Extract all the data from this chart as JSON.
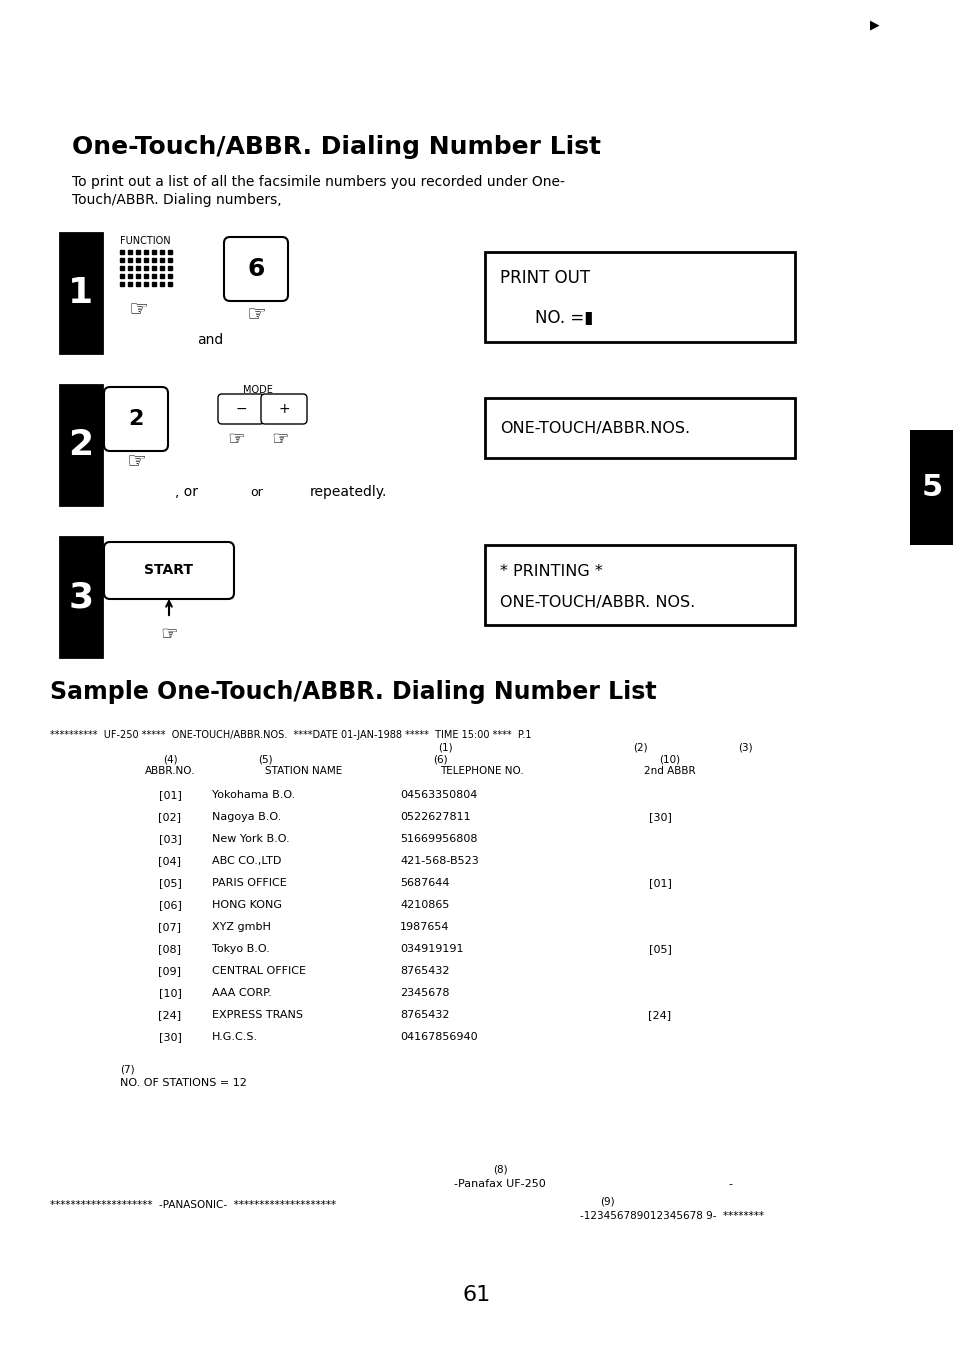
{
  "bg_color": "#ffffff",
  "title": "One-Touch/ABBR. Dialing Number List",
  "subtitle_line1": "To print out a list of all the facsimile numbers you recorded under One-",
  "subtitle_line2": "Touch/ABBR. Dialing numbers,",
  "section2_title": "Sample One-Touch/ABBR. Dialing Number List",
  "page_number": "61",
  "tab_label": "5",
  "display1_line1": "PRINT OUT",
  "display1_line2": "NO. =▮",
  "display2_text": "ONE-TOUCH/ABBR.NOS.",
  "display3_line1": "* PRINTING *",
  "display3_line2": "ONE-TOUCH/ABBR. NOS.",
  "sample_data": [
    [
      "[01]",
      "Yokohama B.O.",
      "04563350804",
      ""
    ],
    [
      "[02]",
      "Nagoya B.O.",
      "0522627811",
      "[30]"
    ],
    [
      "[03]",
      "New York B.O.",
      "51669956808",
      ""
    ],
    [
      "[04]",
      "ABC CO.,LTD",
      "421-568-B523",
      ""
    ],
    [
      "[05]",
      "PARIS OFFICE",
      "5687644",
      "[01]"
    ],
    [
      "[06]",
      "HONG KONG",
      "4210865",
      ""
    ],
    [
      "[07]",
      "XYZ gmbH",
      "1987654",
      ""
    ],
    [
      "[08]",
      "Tokyo B.O.",
      "034919191",
      "[05]"
    ],
    [
      "[09]",
      "CENTRAL OFFICE",
      "8765432",
      ""
    ],
    [
      "[10]",
      "AAA CORP.",
      "2345678",
      ""
    ],
    [
      "[24]",
      "EXPRESS TRANS",
      "8765432",
      "[24]"
    ],
    [
      "[30]",
      "H.G.C.S.",
      "04167856940",
      ""
    ]
  ]
}
